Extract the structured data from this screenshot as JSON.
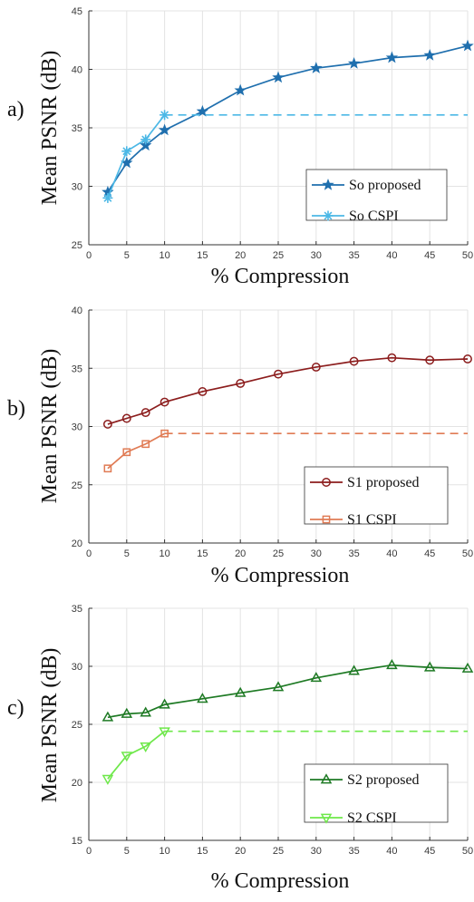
{
  "chart_data": [
    {
      "type": "line",
      "panel_label": "a)",
      "xlabel": "% Compression",
      "ylabel": "Mean PSNR (dB)",
      "xlim": [
        0,
        50
      ],
      "ylim": [
        25,
        45
      ],
      "xticks": [
        0,
        5,
        10,
        15,
        20,
        25,
        30,
        35,
        40,
        45,
        50
      ],
      "yticks": [
        25,
        30,
        35,
        40,
        45
      ],
      "grid": true,
      "legend_position": "bottom-right",
      "series": [
        {
          "name": "So proposed",
          "marker": "star",
          "color": "#1f6fae",
          "x": [
            2.5,
            5,
            7.5,
            10,
            15,
            20,
            25,
            30,
            35,
            40,
            45,
            50
          ],
          "y": [
            29.5,
            32.0,
            33.5,
            34.8,
            36.4,
            38.2,
            39.3,
            40.1,
            40.5,
            41.0,
            41.2,
            42.0
          ]
        },
        {
          "name": "So CSPI",
          "marker": "asterisk",
          "color": "#4cb8e6",
          "x": [
            2.5,
            5,
            7.5,
            10
          ],
          "y": [
            29.0,
            33.0,
            34.0,
            36.1
          ],
          "dashed_extension": {
            "from_x": 10,
            "to_x": 50,
            "y": 36.1
          }
        }
      ]
    },
    {
      "type": "line",
      "panel_label": "b)",
      "xlabel": "% Compression",
      "ylabel": "Mean PSNR (dB)",
      "xlim": [
        0,
        50
      ],
      "ylim": [
        20,
        40
      ],
      "xticks": [
        0,
        5,
        10,
        15,
        20,
        25,
        30,
        35,
        40,
        45,
        50
      ],
      "yticks": [
        20,
        25,
        30,
        35,
        40
      ],
      "grid": true,
      "legend_position": "bottom-right",
      "series": [
        {
          "name": "S1 proposed",
          "marker": "circle",
          "color": "#8c1d1d",
          "x": [
            2.5,
            5,
            7.5,
            10,
            15,
            20,
            25,
            30,
            35,
            40,
            45,
            50
          ],
          "y": [
            30.2,
            30.7,
            31.2,
            32.1,
            33.0,
            33.7,
            34.5,
            35.1,
            35.6,
            35.9,
            35.7,
            35.8
          ]
        },
        {
          "name": "S1 CSPI",
          "marker": "square",
          "color": "#e07b54",
          "x": [
            2.5,
            5,
            7.5,
            10
          ],
          "y": [
            26.4,
            27.8,
            28.5,
            29.4
          ],
          "dashed_extension": {
            "from_x": 10,
            "to_x": 50,
            "y": 29.4
          }
        }
      ]
    },
    {
      "type": "line",
      "panel_label": "c)",
      "xlabel": "% Compression",
      "ylabel": "Mean PSNR (dB)",
      "xlim": [
        0,
        50
      ],
      "ylim": [
        15,
        35
      ],
      "xticks": [
        0,
        5,
        10,
        15,
        20,
        25,
        30,
        35,
        40,
        45,
        50
      ],
      "yticks": [
        15,
        20,
        25,
        30,
        35
      ],
      "grid": true,
      "legend_position": "bottom-right",
      "series": [
        {
          "name": "S2 proposed",
          "marker": "triangle-up",
          "color": "#1e7a24",
          "x": [
            2.5,
            5,
            7.5,
            10,
            15,
            20,
            25,
            30,
            35,
            40,
            45,
            50
          ],
          "y": [
            25.6,
            25.9,
            26.0,
            26.7,
            27.2,
            27.7,
            28.2,
            29.0,
            29.6,
            30.1,
            29.9,
            29.8
          ]
        },
        {
          "name": "S2 CSPI",
          "marker": "triangle-down",
          "color": "#6ee84a",
          "x": [
            2.5,
            5,
            7.5,
            10
          ],
          "y": [
            20.3,
            22.3,
            23.1,
            24.4
          ],
          "dashed_extension": {
            "from_x": 10,
            "to_x": 50,
            "y": 24.4
          }
        }
      ]
    }
  ]
}
